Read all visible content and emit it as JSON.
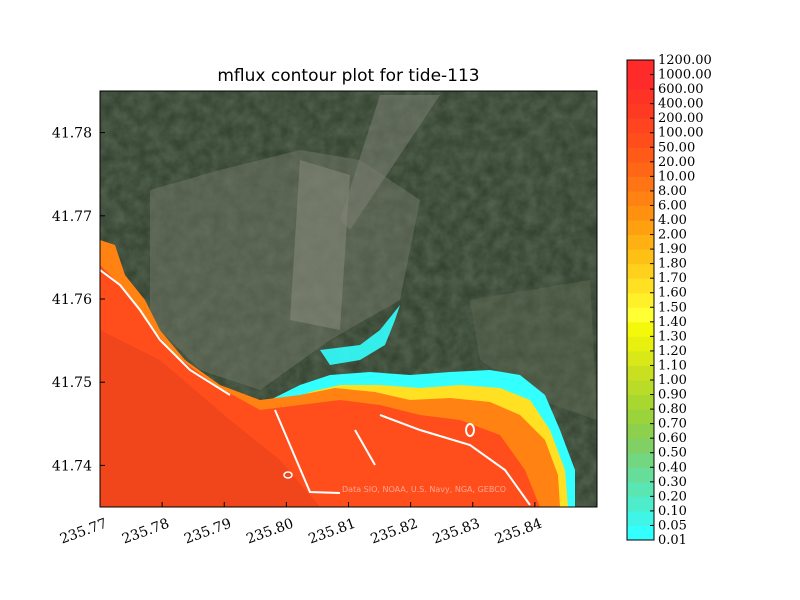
{
  "chart_data": {
    "type": "heatmap",
    "title": "mflux contour plot for tide-113",
    "xlabel": "",
    "ylabel": "",
    "xlim": [
      235.77,
      235.85
    ],
    "ylim": [
      41.735,
      41.785
    ],
    "x_ticks": [
      "235.77",
      "235.78",
      "235.79",
      "235.80",
      "235.81",
      "235.82",
      "235.83",
      "235.84"
    ],
    "x_tick_values": [
      235.77,
      235.78,
      235.79,
      235.8,
      235.81,
      235.82,
      235.83,
      235.84
    ],
    "y_ticks": [
      "41.74",
      "41.75",
      "41.76",
      "41.77",
      "41.78"
    ],
    "y_tick_values": [
      41.74,
      41.75,
      41.76,
      41.77,
      41.78
    ],
    "basemap": "satellite imagery",
    "attribution": "Data SIO, NOAA, U.S. Navy, NGA, GEBCO",
    "colorbar": {
      "levels": [
        "0.01",
        "0.05",
        "0.10",
        "0.20",
        "0.30",
        "0.40",
        "0.50",
        "0.60",
        "0.70",
        "0.80",
        "0.90",
        "1.00",
        "1.10",
        "1.20",
        "1.30",
        "1.40",
        "1.50",
        "1.60",
        "1.70",
        "1.80",
        "1.90",
        "2.00",
        "4.00",
        "6.00",
        "8.00",
        "10.00",
        "20.00",
        "50.00",
        "100.00",
        "200.00",
        "400.00",
        "600.00",
        "1000.00",
        "1200.00"
      ],
      "colors": [
        "#33ffff",
        "#3ff6e6",
        "#4dedcc",
        "#5ae6b3",
        "#66de9a",
        "#73d680",
        "#80d066",
        "#8cd04d",
        "#9ad43a",
        "#a8d82f",
        "#b8dc28",
        "#c8e020",
        "#d8e818",
        "#e8f010",
        "#f4f80a",
        "#ffff33",
        "#fff02a",
        "#ffe022",
        "#ffd01c",
        "#ffc016",
        "#ffb012",
        "#ffa010",
        "#ff9010",
        "#ff8212",
        "#ff7414",
        "#ff6616",
        "#ff5a18",
        "#ff4e1c",
        "#ff441f",
        "#ff3a22",
        "#ff3226",
        "#ff2a2a",
        "#ff2a2a"
      ]
    }
  }
}
